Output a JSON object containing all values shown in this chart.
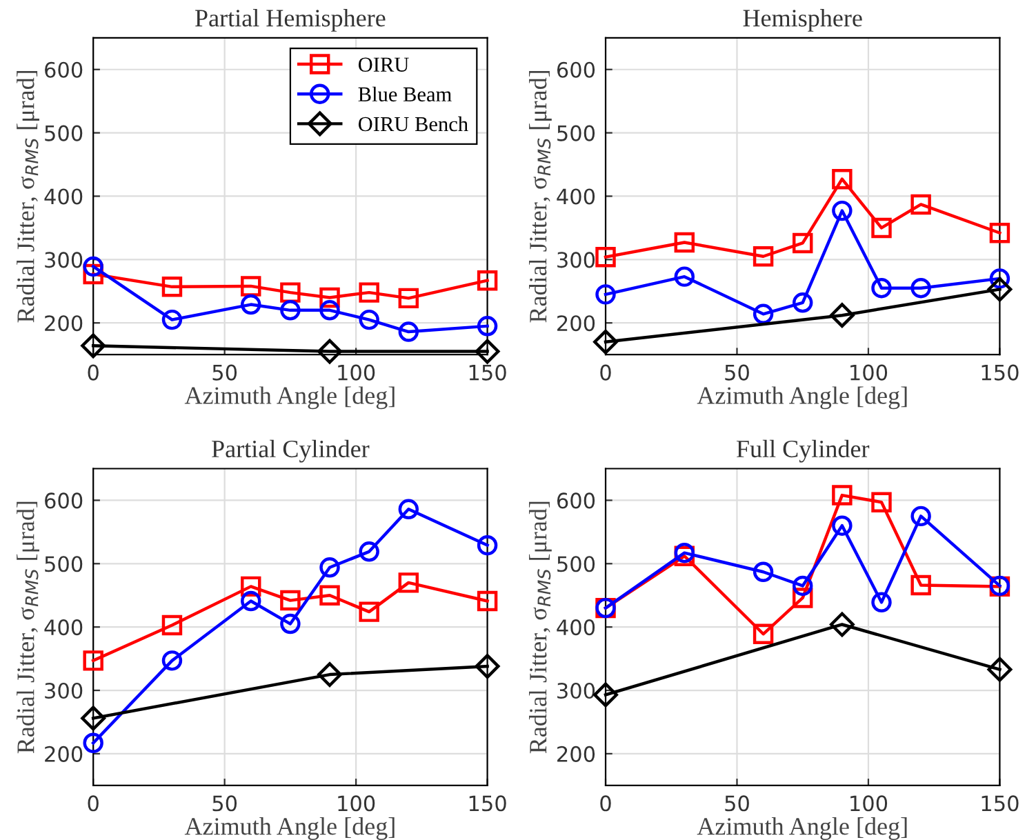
{
  "chart_data": [
    {
      "type": "line",
      "title": "Partial Hemisphere",
      "xlabel": "Azimuth Angle [deg]",
      "ylabel": "Radial Jitter, σ$_{RMS}$ [μrad]",
      "xlim": [
        0,
        150
      ],
      "ylim": [
        150,
        650
      ],
      "xticks": [
        0,
        50,
        100,
        150
      ],
      "yticks": [
        200,
        300,
        400,
        500,
        600
      ],
      "grid": true,
      "legend": "top right",
      "series": [
        {
          "name": "OIRU",
          "color": "#ff0000",
          "marker": "square",
          "x": [
            0,
            30,
            60,
            75,
            90,
            105,
            120,
            150
          ],
          "values": [
            277,
            257,
            258,
            248,
            240,
            248,
            239,
            267
          ]
        },
        {
          "name": "Blue Beam",
          "color": "#0000ff",
          "marker": "circle",
          "x": [
            0,
            30,
            60,
            75,
            90,
            105,
            120,
            150
          ],
          "values": [
            289,
            205,
            229,
            220,
            220,
            205,
            186,
            195
          ]
        },
        {
          "name": "OIRU Bench",
          "color": "#000000",
          "marker": "diamond",
          "x": [
            0,
            90,
            150
          ],
          "values": [
            164,
            155,
            155
          ]
        }
      ]
    },
    {
      "type": "line",
      "title": "Hemisphere",
      "xlabel": "Azimuth Angle [deg]",
      "ylabel": "Radial Jitter, σ$_{RMS}$ [μrad]",
      "xlim": [
        0,
        150
      ],
      "ylim": [
        150,
        650
      ],
      "xticks": [
        0,
        50,
        100,
        150
      ],
      "yticks": [
        200,
        300,
        400,
        500,
        600
      ],
      "grid": true,
      "series": [
        {
          "color": "#ff0000",
          "marker": "square",
          "x": [
            0,
            30,
            60,
            75,
            90,
            105,
            120,
            150
          ],
          "values": [
            304,
            327,
            305,
            326,
            427,
            350,
            387,
            342
          ]
        },
        {
          "color": "#0000ff",
          "marker": "circle",
          "x": [
            0,
            30,
            60,
            75,
            90,
            105,
            120,
            150
          ],
          "values": [
            245,
            273,
            214,
            232,
            377,
            255,
            255,
            270
          ]
        },
        {
          "color": "#000000",
          "marker": "diamond",
          "x": [
            0,
            90,
            150
          ],
          "values": [
            170,
            212,
            253
          ]
        }
      ]
    },
    {
      "type": "line",
      "title": "Partial Cylinder",
      "xlabel": "Azimuth Angle [deg]",
      "ylabel": "Radial Jitter, σ$_{RMS}$ [μrad]",
      "xlim": [
        0,
        150
      ],
      "ylim": [
        150,
        650
      ],
      "xticks": [
        0,
        50,
        100,
        150
      ],
      "yticks": [
        200,
        300,
        400,
        500,
        600
      ],
      "grid": true,
      "series": [
        {
          "color": "#ff0000",
          "marker": "square",
          "x": [
            0,
            30,
            60,
            75,
            90,
            105,
            120,
            150
          ],
          "values": [
            347,
            403,
            464,
            442,
            450,
            424,
            470,
            441
          ]
        },
        {
          "color": "#0000ff",
          "marker": "circle",
          "x": [
            0,
            30,
            60,
            75,
            90,
            105,
            120,
            150
          ],
          "values": [
            217,
            347,
            441,
            405,
            494,
            519,
            586,
            529
          ]
        },
        {
          "color": "#000000",
          "marker": "diamond",
          "x": [
            0,
            90,
            150
          ],
          "values": [
            256,
            325,
            338
          ]
        }
      ]
    },
    {
      "type": "line",
      "title": "Full Cylinder",
      "xlabel": "Azimuth Angle [deg]",
      "ylabel": "Radial Jitter, σ$_{RMS}$ [μrad]",
      "xlim": [
        0,
        150
      ],
      "ylim": [
        150,
        650
      ],
      "xticks": [
        0,
        50,
        100,
        150
      ],
      "yticks": [
        200,
        300,
        400,
        500,
        600
      ],
      "grid": true,
      "series": [
        {
          "color": "#ff0000",
          "marker": "square",
          "x": [
            0,
            30,
            60,
            75,
            90,
            105,
            120,
            150
          ],
          "values": [
            430,
            512,
            389,
            446,
            608,
            597,
            466,
            464
          ]
        },
        {
          "color": "#0000ff",
          "marker": "circle",
          "x": [
            0,
            30,
            60,
            75,
            90,
            105,
            120,
            150
          ],
          "values": [
            430,
            517,
            487,
            465,
            560,
            439,
            575,
            465
          ]
        },
        {
          "color": "#000000",
          "marker": "diamond",
          "x": [
            0,
            90,
            150
          ],
          "values": [
            293,
            404,
            333
          ]
        }
      ]
    }
  ]
}
